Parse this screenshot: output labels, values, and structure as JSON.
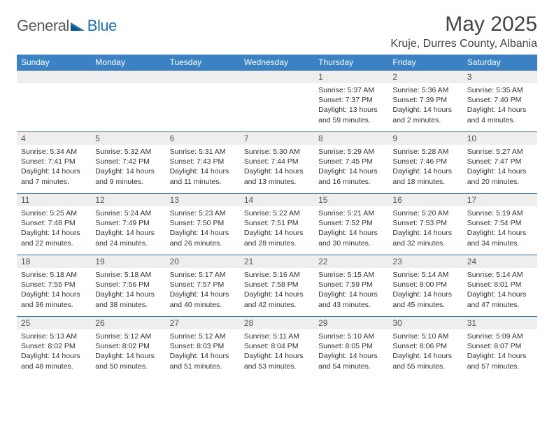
{
  "brand": {
    "word1": "General",
    "word2": "Blue"
  },
  "title": "May 2025",
  "location": "Kruje, Durres County, Albania",
  "colors": {
    "header_bg": "#3b82c4",
    "header_text": "#ffffff",
    "row_divider": "#3b6fa0",
    "daynum_bg": "#eeeeee",
    "text": "#333333",
    "logo_gray": "#5a5a5a",
    "logo_blue": "#1e6fb0"
  },
  "weekdays": [
    "Sunday",
    "Monday",
    "Tuesday",
    "Wednesday",
    "Thursday",
    "Friday",
    "Saturday"
  ],
  "weeks": [
    [
      null,
      null,
      null,
      null,
      {
        "n": "1",
        "sunrise": "5:37 AM",
        "sunset": "7:37 PM",
        "daylight": "13 hours and 59 minutes."
      },
      {
        "n": "2",
        "sunrise": "5:36 AM",
        "sunset": "7:39 PM",
        "daylight": "14 hours and 2 minutes."
      },
      {
        "n": "3",
        "sunrise": "5:35 AM",
        "sunset": "7:40 PM",
        "daylight": "14 hours and 4 minutes."
      }
    ],
    [
      {
        "n": "4",
        "sunrise": "5:34 AM",
        "sunset": "7:41 PM",
        "daylight": "14 hours and 7 minutes."
      },
      {
        "n": "5",
        "sunrise": "5:32 AM",
        "sunset": "7:42 PM",
        "daylight": "14 hours and 9 minutes."
      },
      {
        "n": "6",
        "sunrise": "5:31 AM",
        "sunset": "7:43 PM",
        "daylight": "14 hours and 11 minutes."
      },
      {
        "n": "7",
        "sunrise": "5:30 AM",
        "sunset": "7:44 PM",
        "daylight": "14 hours and 13 minutes."
      },
      {
        "n": "8",
        "sunrise": "5:29 AM",
        "sunset": "7:45 PM",
        "daylight": "14 hours and 16 minutes."
      },
      {
        "n": "9",
        "sunrise": "5:28 AM",
        "sunset": "7:46 PM",
        "daylight": "14 hours and 18 minutes."
      },
      {
        "n": "10",
        "sunrise": "5:27 AM",
        "sunset": "7:47 PM",
        "daylight": "14 hours and 20 minutes."
      }
    ],
    [
      {
        "n": "11",
        "sunrise": "5:25 AM",
        "sunset": "7:48 PM",
        "daylight": "14 hours and 22 minutes."
      },
      {
        "n": "12",
        "sunrise": "5:24 AM",
        "sunset": "7:49 PM",
        "daylight": "14 hours and 24 minutes."
      },
      {
        "n": "13",
        "sunrise": "5:23 AM",
        "sunset": "7:50 PM",
        "daylight": "14 hours and 26 minutes."
      },
      {
        "n": "14",
        "sunrise": "5:22 AM",
        "sunset": "7:51 PM",
        "daylight": "14 hours and 28 minutes."
      },
      {
        "n": "15",
        "sunrise": "5:21 AM",
        "sunset": "7:52 PM",
        "daylight": "14 hours and 30 minutes."
      },
      {
        "n": "16",
        "sunrise": "5:20 AM",
        "sunset": "7:53 PM",
        "daylight": "14 hours and 32 minutes."
      },
      {
        "n": "17",
        "sunrise": "5:19 AM",
        "sunset": "7:54 PM",
        "daylight": "14 hours and 34 minutes."
      }
    ],
    [
      {
        "n": "18",
        "sunrise": "5:18 AM",
        "sunset": "7:55 PM",
        "daylight": "14 hours and 36 minutes."
      },
      {
        "n": "19",
        "sunrise": "5:18 AM",
        "sunset": "7:56 PM",
        "daylight": "14 hours and 38 minutes."
      },
      {
        "n": "20",
        "sunrise": "5:17 AM",
        "sunset": "7:57 PM",
        "daylight": "14 hours and 40 minutes."
      },
      {
        "n": "21",
        "sunrise": "5:16 AM",
        "sunset": "7:58 PM",
        "daylight": "14 hours and 42 minutes."
      },
      {
        "n": "22",
        "sunrise": "5:15 AM",
        "sunset": "7:59 PM",
        "daylight": "14 hours and 43 minutes."
      },
      {
        "n": "23",
        "sunrise": "5:14 AM",
        "sunset": "8:00 PM",
        "daylight": "14 hours and 45 minutes."
      },
      {
        "n": "24",
        "sunrise": "5:14 AM",
        "sunset": "8:01 PM",
        "daylight": "14 hours and 47 minutes."
      }
    ],
    [
      {
        "n": "25",
        "sunrise": "5:13 AM",
        "sunset": "8:02 PM",
        "daylight": "14 hours and 48 minutes."
      },
      {
        "n": "26",
        "sunrise": "5:12 AM",
        "sunset": "8:02 PM",
        "daylight": "14 hours and 50 minutes."
      },
      {
        "n": "27",
        "sunrise": "5:12 AM",
        "sunset": "8:03 PM",
        "daylight": "14 hours and 51 minutes."
      },
      {
        "n": "28",
        "sunrise": "5:11 AM",
        "sunset": "8:04 PM",
        "daylight": "14 hours and 53 minutes."
      },
      {
        "n": "29",
        "sunrise": "5:10 AM",
        "sunset": "8:05 PM",
        "daylight": "14 hours and 54 minutes."
      },
      {
        "n": "30",
        "sunrise": "5:10 AM",
        "sunset": "8:06 PM",
        "daylight": "14 hours and 55 minutes."
      },
      {
        "n": "31",
        "sunrise": "5:09 AM",
        "sunset": "8:07 PM",
        "daylight": "14 hours and 57 minutes."
      }
    ]
  ],
  "labels": {
    "sunrise": "Sunrise:",
    "sunset": "Sunset:",
    "daylight": "Daylight:"
  }
}
